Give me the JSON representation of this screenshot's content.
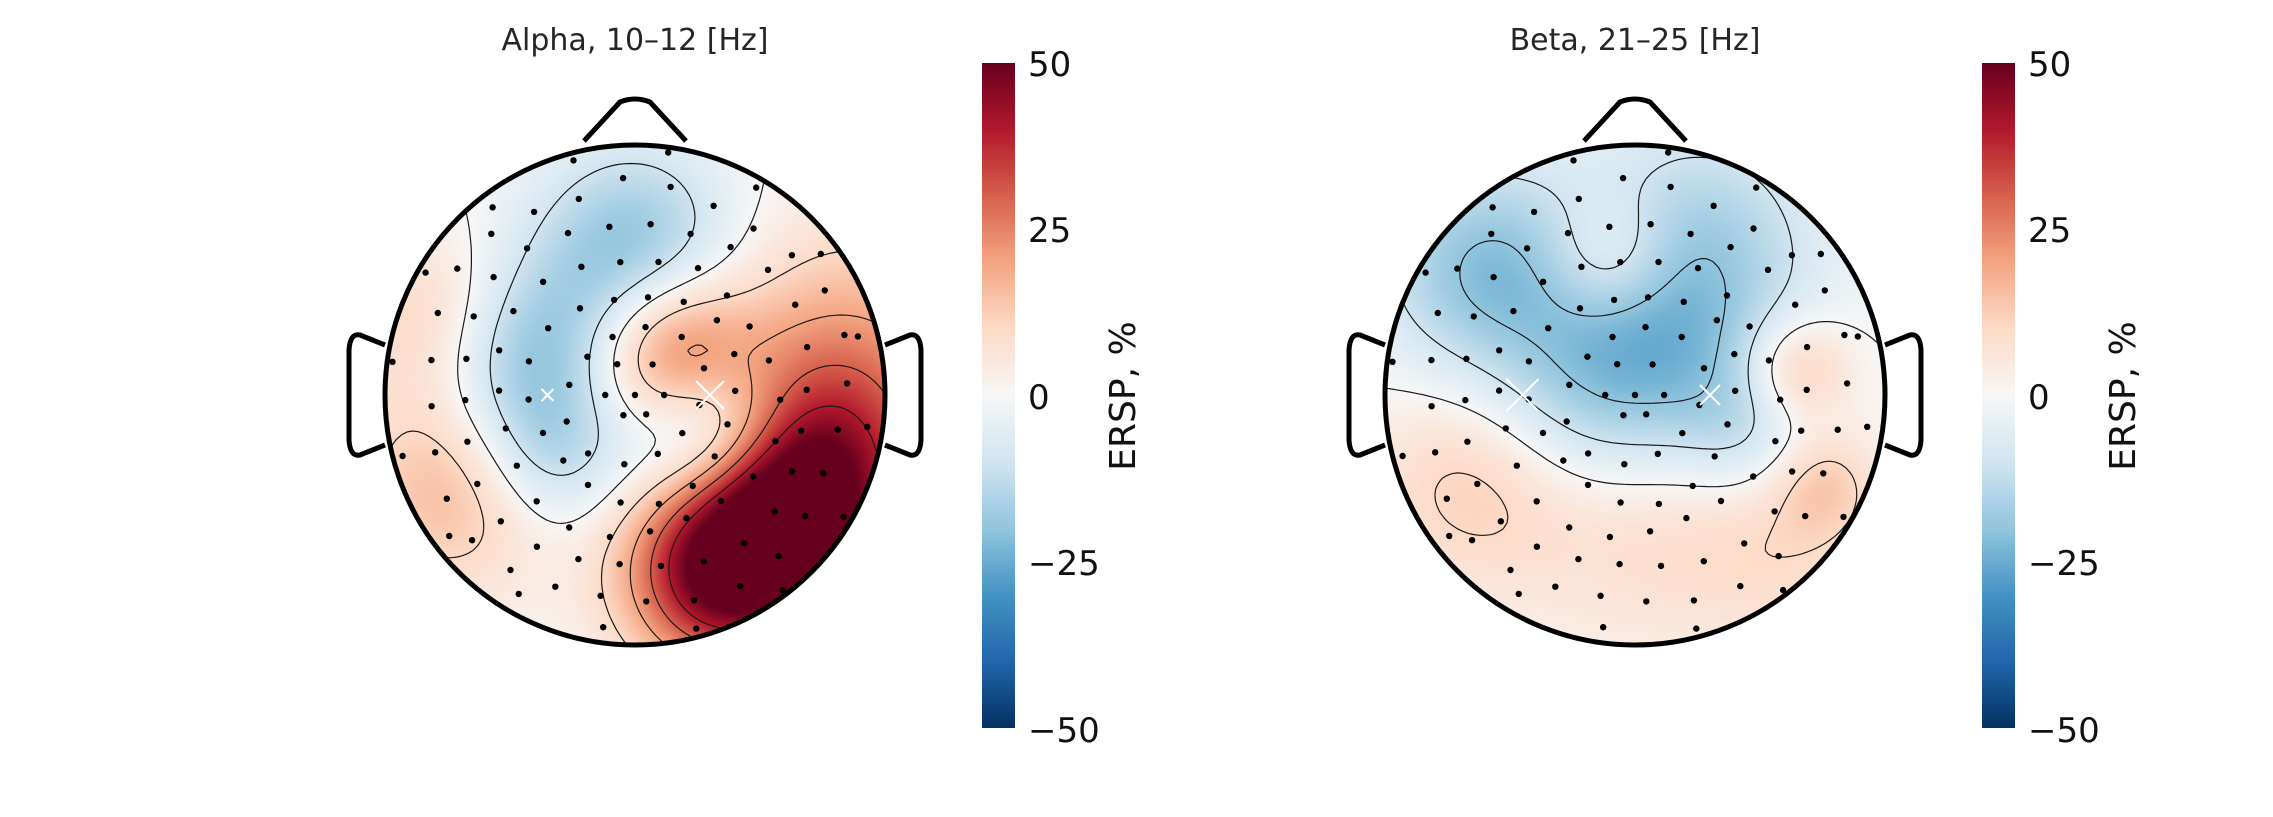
{
  "figure": {
    "panels": [
      {
        "title": "Alpha, 10–12 [Hz]",
        "colorbar": {
          "label": "ERSP, %",
          "ticks": [
            {
              "value": 50,
              "label": "50"
            },
            {
              "value": 25,
              "label": "25"
            },
            {
              "value": 0,
              "label": "0"
            },
            {
              "value": -25,
              "label": "−25"
            },
            {
              "value": -50,
              "label": "−50"
            }
          ]
        }
      },
      {
        "title": "Beta, 21–25 [Hz]",
        "colorbar": {
          "label": "ERSP, %",
          "ticks": [
            {
              "value": 50,
              "label": "50"
            },
            {
              "value": 25,
              "label": "25"
            },
            {
              "value": 0,
              "label": "0"
            },
            {
              "value": -25,
              "label": "−25"
            },
            {
              "value": -50,
              "label": "−50"
            }
          ]
        }
      }
    ]
  },
  "chart_data": [
    {
      "type": "heatmap",
      "title": "Alpha, 10–12 [Hz]",
      "colorbar_label": "ERSP, %",
      "clim": [
        -50,
        50
      ],
      "colormap": "RdBu_r",
      "colormap_stops": [
        "#053061",
        "#2166ac",
        "#4393c3",
        "#92c5de",
        "#d1e5f0",
        "#f7f7f7",
        "#fddbc7",
        "#f4a582",
        "#d6604d",
        "#b2182b",
        "#67001f"
      ],
      "head_outline": true,
      "contour_lines": true,
      "sensor_markers": true,
      "sources": [
        {
          "x": 0.55,
          "y": -0.55,
          "value": 46,
          "spread": 0.3
        },
        {
          "x": 0.3,
          "y": -0.75,
          "value": 30,
          "spread": 0.25
        },
        {
          "x": 0.75,
          "y": -0.3,
          "value": 22,
          "spread": 0.3
        },
        {
          "x": 0.85,
          "y": 0.1,
          "value": 20,
          "spread": 0.4
        },
        {
          "x": -0.7,
          "y": -0.35,
          "value": 18,
          "spread": 0.3
        },
        {
          "x": -0.8,
          "y": 0.3,
          "value": 14,
          "spread": 0.25
        },
        {
          "x": 0.15,
          "y": 0.15,
          "value": 28,
          "spread": 0.22
        },
        {
          "x": 0.3,
          "y": -0.15,
          "value": -28,
          "spread": 0.22
        },
        {
          "x": -0.45,
          "y": 0.15,
          "value": -22,
          "spread": 0.28
        },
        {
          "x": 0.0,
          "y": 0.6,
          "value": -20,
          "spread": 0.28
        },
        {
          "x": -0.35,
          "y": -0.25,
          "value": -15,
          "spread": 0.22
        }
      ]
    },
    {
      "type": "heatmap",
      "title": "Beta, 21–25 [Hz]",
      "colorbar_label": "ERSP, %",
      "clim": [
        -50,
        50
      ],
      "colormap": "RdBu_r",
      "colormap_stops": [
        "#053061",
        "#2166ac",
        "#4393c3",
        "#92c5de",
        "#d1e5f0",
        "#f7f7f7",
        "#fddbc7",
        "#f4a582",
        "#d6604d",
        "#b2182b",
        "#67001f"
      ],
      "head_outline": true,
      "contour_lines": true,
      "sensor_markers": true,
      "sources": [
        {
          "x": -0.6,
          "y": 0.5,
          "value": -20,
          "spread": 0.3
        },
        {
          "x": 0.25,
          "y": 0.6,
          "value": -16,
          "spread": 0.35
        },
        {
          "x": -0.2,
          "y": 0.0,
          "value": -14,
          "spread": 0.3
        },
        {
          "x": 0.15,
          "y": 0.15,
          "value": -12,
          "spread": 0.3
        },
        {
          "x": 0.45,
          "y": -0.15,
          "value": -10,
          "spread": 0.2
        },
        {
          "x": -0.1,
          "y": 0.55,
          "value": 12,
          "spread": 0.18
        },
        {
          "x": 0.65,
          "y": 0.1,
          "value": 16,
          "spread": 0.15
        },
        {
          "x": 0.75,
          "y": -0.35,
          "value": 10,
          "spread": 0.15
        },
        {
          "x": -0.65,
          "y": -0.35,
          "value": 12,
          "spread": 0.3
        },
        {
          "x": 0.0,
          "y": -0.55,
          "value": 8,
          "spread": 0.35
        },
        {
          "x": 0.6,
          "y": -0.6,
          "value": 8,
          "spread": 0.3
        }
      ]
    }
  ]
}
